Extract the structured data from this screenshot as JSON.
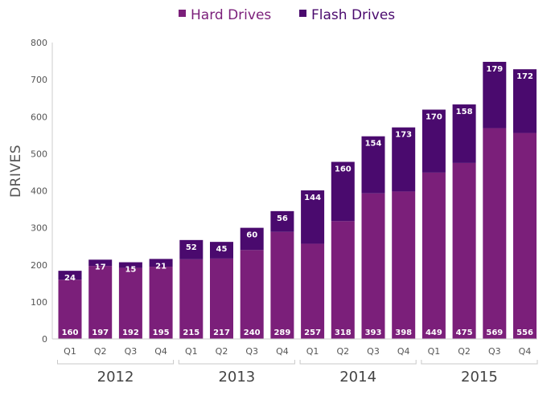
{
  "chart_data": {
    "type": "bar",
    "stacked": true,
    "ylabel": "DRIVES",
    "ylim": [
      0,
      800
    ],
    "yticks": [
      0,
      100,
      200,
      300,
      400,
      500,
      600,
      700,
      800
    ],
    "legend_position": "top-center",
    "categories": [
      "Q1",
      "Q2",
      "Q3",
      "Q4",
      "Q1",
      "Q2",
      "Q3",
      "Q4",
      "Q1",
      "Q2",
      "Q3",
      "Q4",
      "Q1",
      "Q2",
      "Q3",
      "Q4"
    ],
    "groups": [
      {
        "label": "2012",
        "start": 0,
        "end": 3
      },
      {
        "label": "2013",
        "start": 4,
        "end": 7
      },
      {
        "label": "2014",
        "start": 8,
        "end": 11
      },
      {
        "label": "2015",
        "start": 12,
        "end": 15
      }
    ],
    "series": [
      {
        "name": "Hard Drives",
        "color": "#7b1f7a",
        "values": [
          160,
          197,
          192,
          195,
          215,
          217,
          240,
          289,
          257,
          318,
          393,
          398,
          449,
          475,
          569,
          556
        ]
      },
      {
        "name": "Flash Drives",
        "color": "#4a0a6e",
        "values": [
          24,
          17,
          15,
          21,
          52,
          45,
          60,
          56,
          144,
          160,
          154,
          173,
          170,
          158,
          179,
          172
        ]
      }
    ]
  }
}
